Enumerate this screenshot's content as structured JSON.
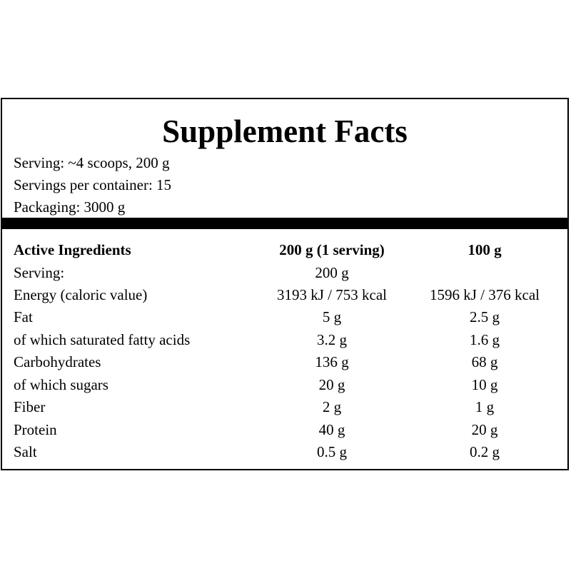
{
  "title": "Supplement Facts",
  "info": {
    "serving": "Serving: ~4 scoops, 200 g",
    "servings_per_container": "Servings per container: 15",
    "packaging": "Packaging: 3000 g"
  },
  "table": {
    "headers": {
      "name": "Active Ingredients",
      "col_a": "200 g (1 serving)",
      "col_b": "100 g"
    },
    "rows": [
      {
        "name": "Serving:",
        "a": "200 g",
        "b": ""
      },
      {
        "name": "Energy (caloric value)",
        "a": "3193 kJ / 753 kcal",
        "b": "1596 kJ / 376 kcal"
      },
      {
        "name": "Fat",
        "a": "5 g",
        "b": "2.5 g"
      },
      {
        "name": "of which saturated fatty acids",
        "a": "3.2 g",
        "b": "1.6 g"
      },
      {
        "name": "Carbohydrates",
        "a": "136 g",
        "b": "68 g"
      },
      {
        "name": "of which sugars",
        "a": "20 g",
        "b": "10 g"
      },
      {
        "name": "Fiber",
        "a": "2 g",
        "b": "1 g"
      },
      {
        "name": "Protein",
        "a": "40 g",
        "b": "20 g"
      },
      {
        "name": "Salt",
        "a": "0.5 g",
        "b": "0.2 g"
      }
    ]
  }
}
